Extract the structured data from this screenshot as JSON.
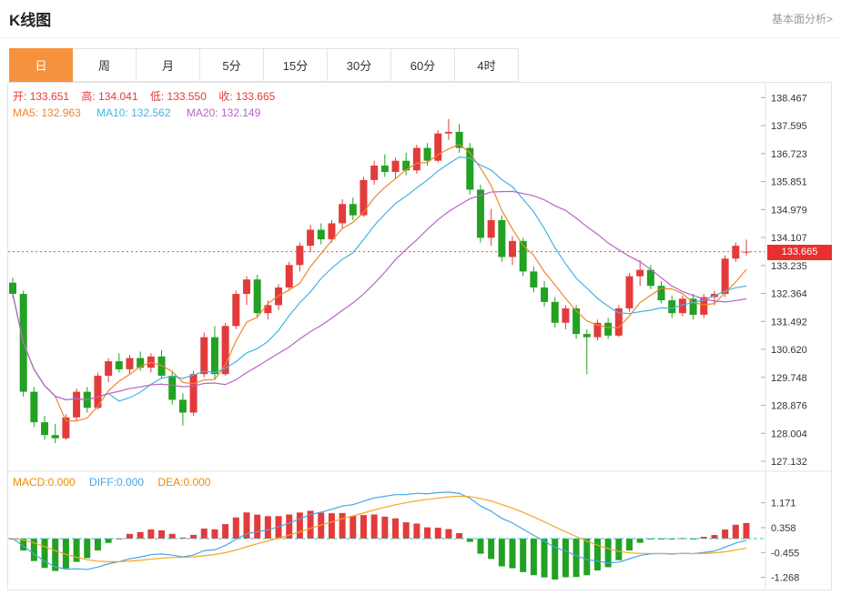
{
  "header": {
    "title": "K线图",
    "link": "基本面分析>"
  },
  "tabs": {
    "items": [
      "日",
      "周",
      "月",
      "5分",
      "15分",
      "30分",
      "60分",
      "4时"
    ],
    "active_index": 0
  },
  "ohlc": {
    "open_label": "开:",
    "open": "133.651",
    "high_label": "高:",
    "high": "134.041",
    "low_label": "低:",
    "low": "133.550",
    "close_label": "收:",
    "close": "133.665"
  },
  "ma": {
    "ma5_label": "MA5:",
    "ma5": "132.963",
    "ma10_label": "MA10:",
    "ma10": "132.562",
    "ma20_label": "MA20:",
    "ma20": "132.149"
  },
  "indicator_header": {
    "macd_label": "MACD:",
    "macd": "0.000",
    "diff_label": "DIFF:",
    "diff": "0.000",
    "dea_label": "DEA:",
    "dea": "0.000"
  },
  "current_price": {
    "value": 133.665,
    "label": "133.665"
  },
  "colors": {
    "up": "#e33b3b",
    "down": "#22a122",
    "ma5": "#f0852d",
    "ma10": "#45b4e3",
    "ma20": "#b864c8",
    "diff": "#45a7e6",
    "dea": "#f5a623",
    "zero_line": "#2bc9c9",
    "price_line": "#ff4444",
    "badge_bg": "#ea2f2f",
    "active_tab_bg": "#f6923e"
  },
  "chart_data": {
    "type": "candlestick",
    "title": "K线图",
    "active_period": "日",
    "y_axis_ticks": [
      "138.467",
      "137.595",
      "136.723",
      "135.851",
      "134.979",
      "134.107",
      "133.235",
      "132.364",
      "131.492",
      "130.620",
      "129.748",
      "128.876",
      "128.004",
      "127.132"
    ],
    "macd_axis_ticks": [
      "1.171",
      "0.358",
      "-0.455",
      "-1.268"
    ],
    "ohlc_current": {
      "open": 133.651,
      "high": 134.041,
      "low": 133.55,
      "close": 133.665
    },
    "overlays": [
      {
        "name": "MA5",
        "value": 132.963
      },
      {
        "name": "MA10",
        "value": 132.562
      },
      {
        "name": "MA20",
        "value": 132.149
      }
    ],
    "indicator": {
      "name": "MACD",
      "macd": 0.0,
      "diff": 0.0,
      "dea": 0.0
    },
    "candles": [
      [
        132.7,
        132.85,
        132.25,
        132.35
      ],
      [
        132.35,
        132.45,
        129.15,
        129.3
      ],
      [
        129.3,
        129.45,
        128.2,
        128.35
      ],
      [
        128.35,
        128.55,
        127.8,
        127.95
      ],
      [
        127.95,
        128.3,
        127.7,
        127.85
      ],
      [
        127.85,
        128.6,
        127.8,
        128.5
      ],
      [
        128.5,
        129.4,
        128.4,
        129.3
      ],
      [
        129.3,
        129.45,
        128.65,
        128.8
      ],
      [
        128.8,
        129.9,
        128.75,
        129.8
      ],
      [
        129.8,
        130.35,
        129.6,
        130.25
      ],
      [
        130.25,
        130.5,
        129.9,
        130.0
      ],
      [
        130.0,
        130.45,
        129.85,
        130.35
      ],
      [
        130.35,
        130.55,
        129.95,
        130.05
      ],
      [
        130.05,
        130.5,
        129.9,
        130.4
      ],
      [
        130.4,
        130.6,
        129.7,
        129.8
      ],
      [
        129.8,
        129.95,
        128.9,
        129.05
      ],
      [
        129.05,
        129.25,
        128.25,
        128.65
      ],
      [
        128.65,
        129.95,
        128.55,
        129.85
      ],
      [
        129.85,
        131.15,
        129.75,
        131.0
      ],
      [
        131.0,
        131.35,
        129.7,
        129.85
      ],
      [
        129.85,
        131.45,
        129.8,
        131.35
      ],
      [
        131.35,
        132.45,
        131.25,
        132.35
      ],
      [
        132.35,
        132.9,
        132.0,
        132.8
      ],
      [
        132.8,
        132.95,
        131.6,
        131.75
      ],
      [
        131.75,
        132.15,
        131.55,
        132.0
      ],
      [
        132.0,
        132.65,
        131.85,
        132.55
      ],
      [
        132.55,
        133.35,
        132.45,
        133.25
      ],
      [
        133.25,
        133.95,
        133.05,
        133.85
      ],
      [
        133.85,
        134.5,
        133.65,
        134.35
      ],
      [
        134.35,
        134.55,
        133.9,
        134.05
      ],
      [
        134.05,
        134.65,
        133.95,
        134.55
      ],
      [
        134.55,
        135.3,
        134.4,
        135.15
      ],
      [
        135.15,
        135.35,
        134.65,
        134.8
      ],
      [
        134.8,
        136.0,
        134.75,
        135.9
      ],
      [
        135.9,
        136.5,
        135.75,
        136.35
      ],
      [
        136.35,
        136.7,
        136.0,
        136.15
      ],
      [
        136.15,
        136.6,
        135.95,
        136.5
      ],
      [
        136.5,
        136.75,
        136.05,
        136.2
      ],
      [
        136.2,
        137.0,
        136.1,
        136.9
      ],
      [
        136.9,
        137.05,
        136.35,
        136.5
      ],
      [
        136.5,
        137.45,
        136.45,
        137.35
      ],
      [
        137.35,
        137.8,
        137.15,
        137.4
      ],
      [
        137.4,
        137.65,
        136.75,
        136.9
      ],
      [
        136.9,
        137.05,
        135.45,
        135.6
      ],
      [
        135.6,
        135.75,
        133.95,
        134.1
      ],
      [
        134.1,
        135.0,
        133.85,
        134.65
      ],
      [
        134.65,
        134.8,
        133.35,
        133.5
      ],
      [
        133.5,
        134.15,
        133.25,
        134.0
      ],
      [
        134.0,
        134.1,
        132.9,
        133.05
      ],
      [
        133.05,
        133.2,
        132.4,
        132.55
      ],
      [
        132.55,
        132.75,
        131.95,
        132.1
      ],
      [
        132.1,
        132.25,
        131.3,
        131.45
      ],
      [
        131.45,
        132.0,
        131.25,
        131.9
      ],
      [
        131.9,
        132.0,
        130.95,
        131.1
      ],
      [
        131.1,
        131.25,
        129.85,
        131.0
      ],
      [
        131.0,
        131.55,
        130.9,
        131.45
      ],
      [
        131.45,
        131.6,
        130.95,
        131.05
      ],
      [
        131.05,
        132.0,
        131.0,
        131.9
      ],
      [
        131.9,
        133.0,
        131.8,
        132.9
      ],
      [
        132.9,
        133.4,
        132.6,
        133.1
      ],
      [
        133.1,
        133.25,
        132.5,
        132.6
      ],
      [
        132.6,
        132.75,
        132.05,
        132.15
      ],
      [
        132.15,
        132.3,
        131.6,
        131.75
      ],
      [
        131.75,
        132.3,
        131.65,
        132.2
      ],
      [
        132.2,
        132.35,
        131.55,
        131.7
      ],
      [
        131.7,
        132.35,
        131.6,
        132.25
      ],
      [
        132.25,
        132.45,
        132.0,
        132.35
      ],
      [
        132.35,
        133.55,
        132.25,
        133.45
      ],
      [
        133.45,
        133.95,
        133.35,
        133.85
      ],
      [
        133.651,
        134.041,
        133.55,
        133.665
      ]
    ]
  }
}
